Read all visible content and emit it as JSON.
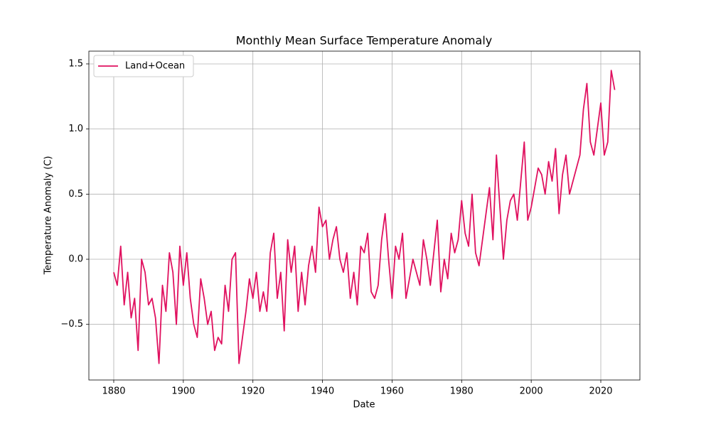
{
  "chart_data": {
    "type": "line",
    "title": "Monthly Mean Surface Temperature Anomaly",
    "x_label": "Date",
    "y_label": "Temperature Anomaly (C)",
    "x": [
      1880,
      1881,
      1882,
      1883,
      1884,
      1885,
      1886,
      1887,
      1888,
      1889,
      1890,
      1891,
      1892,
      1893,
      1894,
      1895,
      1896,
      1897,
      1898,
      1899,
      1900,
      1901,
      1902,
      1903,
      1904,
      1905,
      1906,
      1907,
      1908,
      1909,
      1910,
      1911,
      1912,
      1913,
      1914,
      1915,
      1916,
      1917,
      1918,
      1919,
      1920,
      1921,
      1922,
      1923,
      1924,
      1925,
      1926,
      1927,
      1928,
      1929,
      1930,
      1931,
      1932,
      1933,
      1934,
      1935,
      1936,
      1937,
      1938,
      1939,
      1940,
      1941,
      1942,
      1943,
      1944,
      1945,
      1946,
      1947,
      1948,
      1949,
      1950,
      1951,
      1952,
      1953,
      1954,
      1955,
      1956,
      1957,
      1958,
      1959,
      1960,
      1961,
      1962,
      1963,
      1964,
      1965,
      1966,
      1967,
      1968,
      1969,
      1970,
      1971,
      1972,
      1973,
      1974,
      1975,
      1976,
      1977,
      1978,
      1979,
      1980,
      1981,
      1982,
      1983,
      1984,
      1985,
      1986,
      1987,
      1988,
      1989,
      1990,
      1991,
      1992,
      1993,
      1994,
      1995,
      1996,
      1997,
      1998,
      1999,
      2000,
      2001,
      2002,
      2003,
      2004,
      2005,
      2006,
      2007,
      2008,
      2009,
      2010,
      2011,
      2012,
      2013,
      2014,
      2015,
      2016,
      2017,
      2018,
      2019,
      2020,
      2021,
      2022,
      2023,
      2024
    ],
    "series": [
      {
        "name": "Land+Ocean",
        "color": "#e0115f",
        "values": [
          -0.1,
          -0.2,
          0.1,
          -0.35,
          -0.1,
          -0.45,
          -0.3,
          -0.7,
          0.0,
          -0.1,
          -0.35,
          -0.3,
          -0.45,
          -0.8,
          -0.2,
          -0.4,
          0.05,
          -0.1,
          -0.5,
          0.1,
          -0.2,
          0.05,
          -0.3,
          -0.5,
          -0.6,
          -0.15,
          -0.3,
          -0.5,
          -0.4,
          -0.7,
          -0.6,
          -0.65,
          -0.2,
          -0.4,
          0.0,
          0.05,
          -0.8,
          -0.6,
          -0.4,
          -0.15,
          -0.3,
          -0.1,
          -0.4,
          -0.25,
          -0.4,
          0.05,
          0.2,
          -0.3,
          -0.1,
          -0.55,
          0.15,
          -0.1,
          0.1,
          -0.4,
          -0.1,
          -0.35,
          -0.05,
          0.1,
          -0.1,
          0.4,
          0.25,
          0.3,
          0.0,
          0.15,
          0.25,
          0.0,
          -0.1,
          0.05,
          -0.3,
          -0.1,
          -0.35,
          0.1,
          0.05,
          0.2,
          -0.25,
          -0.3,
          -0.2,
          0.15,
          0.35,
          0.0,
          -0.3,
          0.1,
          0.0,
          0.2,
          -0.3,
          -0.15,
          0.0,
          -0.1,
          -0.2,
          0.15,
          0.0,
          -0.2,
          0.05,
          0.3,
          -0.25,
          0.0,
          -0.15,
          0.2,
          0.05,
          0.15,
          0.45,
          0.2,
          0.1,
          0.5,
          0.05,
          -0.05,
          0.15,
          0.35,
          0.55,
          0.15,
          0.8,
          0.4,
          0.0,
          0.3,
          0.45,
          0.5,
          0.3,
          0.6,
          0.9,
          0.3,
          0.4,
          0.55,
          0.7,
          0.65,
          0.5,
          0.75,
          0.6,
          0.85,
          0.35,
          0.65,
          0.8,
          0.5,
          0.6,
          0.7,
          0.8,
          1.15,
          1.35,
          0.9,
          0.8,
          1.0,
          1.2,
          0.8,
          0.9,
          1.45,
          1.3
        ]
      }
    ],
    "xlim": [
      1872.85,
      2031.24
    ],
    "ylim": [
      -0.927,
      1.598
    ],
    "xticks": [
      1880,
      1900,
      1920,
      1940,
      1960,
      1980,
      2000,
      2020
    ],
    "yticks": [
      {
        "value": -0.5,
        "label": "−0.5"
      },
      {
        "value": 0,
        "label": "0.0"
      },
      0.5,
      {
        "value": 1,
        "label": "1.0"
      },
      1.5
    ],
    "grid": true,
    "legend": "upper left"
  }
}
